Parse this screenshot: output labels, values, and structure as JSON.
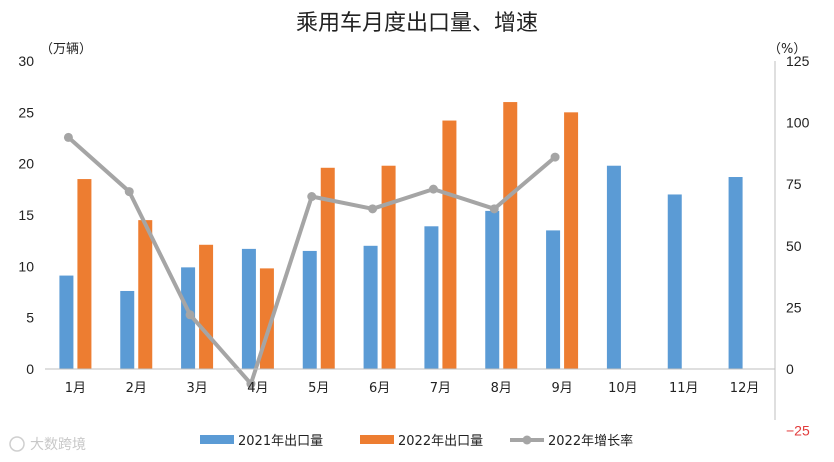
{
  "chart_data": {
    "type": "bar",
    "title": "乘用车月度出口量、增速",
    "left_unit": "（万辆）",
    "right_unit": "（%）",
    "categories": [
      "1月",
      "2月",
      "3月",
      "4月",
      "5月",
      "6月",
      "7月",
      "8月",
      "9月",
      "10月",
      "11月",
      "12月"
    ],
    "series": [
      {
        "name": "2021年出口量",
        "type": "bar",
        "axis": "left",
        "color": "#5b9bd5",
        "values": [
          9.1,
          7.6,
          9.9,
          11.7,
          11.5,
          12.0,
          13.9,
          15.4,
          13.5,
          19.8,
          17.0,
          18.7
        ]
      },
      {
        "name": "2022年出口量",
        "type": "bar",
        "axis": "left",
        "color": "#ed7d31",
        "values": [
          18.5,
          14.5,
          12.1,
          9.8,
          19.6,
          19.8,
          24.2,
          26.0,
          25.0,
          null,
          null,
          null
        ]
      },
      {
        "name": "2022年增长率",
        "type": "line",
        "axis": "right",
        "color": "#a5a5a5",
        "values": [
          94,
          72,
          22,
          -6,
          70,
          65,
          73,
          65,
          86,
          null,
          null,
          null
        ]
      }
    ],
    "y_left": {
      "min": 0,
      "max": 30,
      "ticks": [
        0,
        5,
        10,
        15,
        20,
        25,
        30
      ]
    },
    "y_right": {
      "min": -25,
      "max": 125,
      "ticks": [
        -25,
        0,
        25,
        50,
        75,
        100,
        125
      ],
      "negative_color": "#e23b3b"
    },
    "grid": false,
    "legend_position": "bottom"
  },
  "watermark": "大数跨境"
}
